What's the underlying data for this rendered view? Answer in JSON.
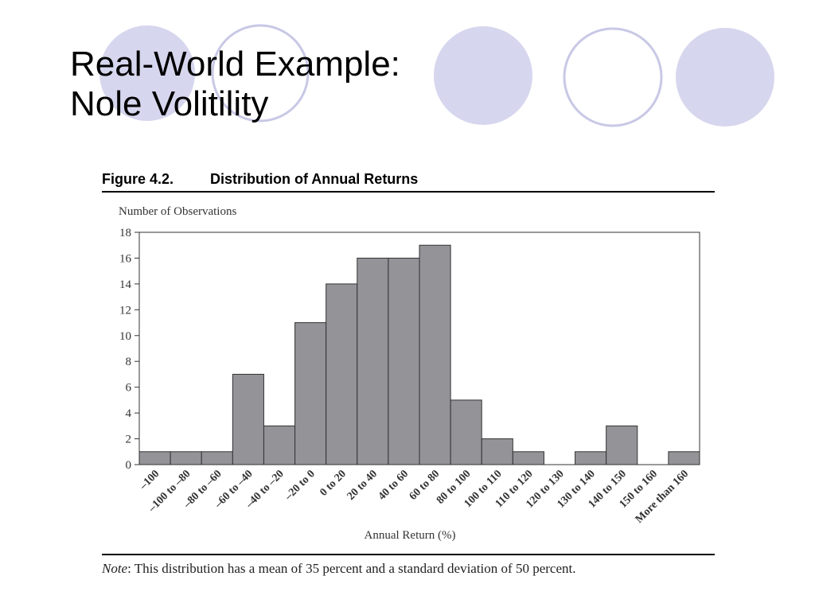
{
  "slide": {
    "title_line1": "Real-World Example:",
    "title_line2": "Nole Volitility",
    "accent_fill": "#d6d6ee",
    "accent_stroke": "#c8c8e6",
    "circles": [
      "filled",
      "outline",
      "filled",
      "outline",
      "filled"
    ]
  },
  "figure": {
    "label": "Figure 4.2.",
    "title": "Distribution of Annual Returns"
  },
  "chart_data": {
    "type": "bar",
    "ylabel": "Number of Observations",
    "xlabel": "Annual Return (%)",
    "ylim": [
      0,
      18
    ],
    "yticks": [
      0,
      2,
      4,
      6,
      8,
      10,
      12,
      14,
      16,
      18
    ],
    "grid": false,
    "bar_color": "#939398",
    "categories": [
      "–100",
      "–100 to –80",
      "–80 to –60",
      "–60 to –40",
      "–40 to –20",
      "–20 to 0",
      "0 to 20",
      "20 to 40",
      "40 to 60",
      "60 to 80",
      "80 to 100",
      "100 to 110",
      "110 to 120",
      "120 to 130",
      "130 to 140",
      "140 to 150",
      "150 to 160",
      "More than 160"
    ],
    "values": [
      1,
      1,
      1,
      7,
      3,
      11,
      14,
      16,
      16,
      17,
      5,
      2,
      1,
      0,
      1,
      3,
      0,
      1
    ]
  },
  "note": {
    "label": "Note",
    "text": ": This distribution has a mean of 35 percent and a standard deviation of 50 percent."
  }
}
